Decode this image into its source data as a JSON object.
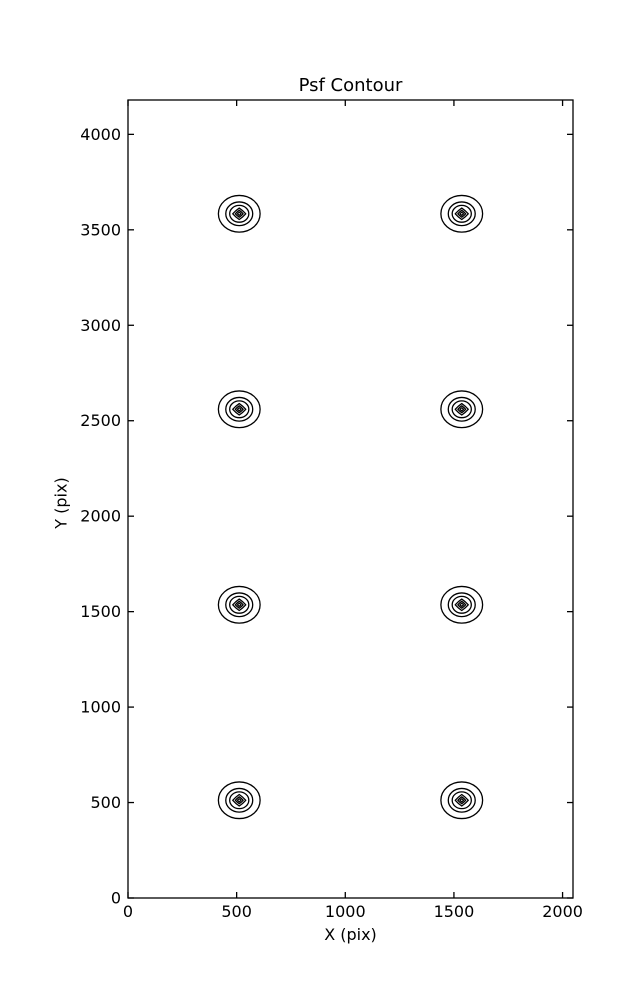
{
  "chart_data": {
    "type": "contour",
    "title": "Psf Contour",
    "xlabel": "X (pix)",
    "ylabel": "Y (pix)",
    "xlim": [
      0,
      2048
    ],
    "ylim": [
      0,
      4180
    ],
    "xticks": [
      0,
      500,
      1000,
      1500,
      2000
    ],
    "yticks": [
      0,
      500,
      1000,
      1500,
      2000,
      2500,
      3000,
      3500,
      4000
    ],
    "grid": false,
    "legend_position": "none",
    "line_color": "#000000",
    "background_color": "#ffffff",
    "psf_centers": [
      [
        512,
        512
      ],
      [
        1536,
        512
      ],
      [
        512,
        1536
      ],
      [
        1536,
        1536
      ],
      [
        512,
        2560
      ],
      [
        1536,
        2560
      ],
      [
        512,
        3584
      ],
      [
        1536,
        3584
      ]
    ],
    "contour_ring_radii_pix": [
      96,
      62,
      44,
      30,
      18,
      8
    ],
    "contour_ring_shapes": [
      "ellipse",
      "ellipse",
      "ellipse",
      "diamond",
      "diamond",
      "diamond"
    ]
  }
}
